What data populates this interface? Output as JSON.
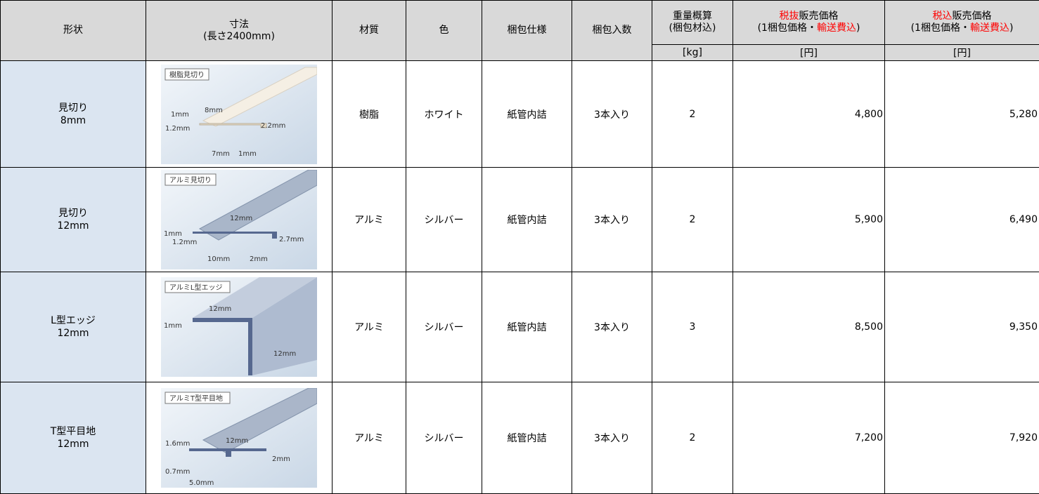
{
  "header": {
    "columns": [
      {
        "lines": [
          [
            {
              "text": "形状"
            }
          ]
        ]
      },
      {
        "lines": [
          [
            {
              "text": "寸法"
            }
          ],
          [
            {
              "text": "(長さ2400mm)"
            }
          ]
        ]
      },
      {
        "lines": [
          [
            {
              "text": "材質"
            }
          ]
        ]
      },
      {
        "lines": [
          [
            {
              "text": "色"
            }
          ]
        ]
      },
      {
        "lines": [
          [
            {
              "text": "梱包仕様"
            }
          ]
        ]
      },
      {
        "lines": [
          [
            {
              "text": "梱包入数"
            }
          ]
        ]
      },
      {
        "lines": [
          [
            {
              "text": "重量概算"
            }
          ],
          [
            {
              "text": "(梱包材込)"
            }
          ]
        ]
      },
      {
        "lines": [
          [
            {
              "text": "税抜",
              "highlight": true
            },
            {
              "text": "販売価格"
            }
          ],
          [
            {
              "text": "(1梱包価格・"
            },
            {
              "text": "輸送費込",
              "highlight": true
            },
            {
              "text": ")"
            }
          ]
        ]
      },
      {
        "lines": [
          [
            {
              "text": "税込",
              "highlight": true
            },
            {
              "text": "販売価格"
            }
          ],
          [
            {
              "text": "(1梱包価格・"
            },
            {
              "text": "輸送費込",
              "highlight": true
            },
            {
              "text": ")"
            }
          ]
        ]
      }
    ],
    "units": [
      "[kg]",
      "[円]",
      "[円]"
    ],
    "highlight_color": "#ff0000"
  },
  "table": {
    "rows": [
      {
        "shape": [
          "見切り",
          "8mm"
        ],
        "diagram": {
          "title": "樹脂見切り",
          "labels": [
            "1mm",
            "8mm",
            "1.2mm",
            "2.2mm",
            "7mm",
            "1mm"
          ]
        },
        "material": "樹脂",
        "color": "ホワイト",
        "packing": "紙管内詰",
        "quantity": "3本入り",
        "weight": "2",
        "price_ex": "4,800",
        "price_in": "5,280"
      },
      {
        "shape": [
          "見切り",
          "12mm"
        ],
        "diagram": {
          "title": "アルミ見切り",
          "labels": [
            "12mm",
            "1mm",
            "1.2mm",
            "2.7mm",
            "10mm",
            "2mm"
          ]
        },
        "material": "アルミ",
        "color": "シルバー",
        "packing": "紙管内詰",
        "quantity": "3本入り",
        "weight": "2",
        "price_ex": "5,900",
        "price_in": "6,490"
      },
      {
        "shape": [
          "L型エッジ",
          "12mm"
        ],
        "diagram": {
          "title": "アルミL型エッジ",
          "labels": [
            "12mm",
            "1mm",
            "12mm"
          ]
        },
        "material": "アルミ",
        "color": "シルバー",
        "packing": "紙管内詰",
        "quantity": "3本入り",
        "weight": "3",
        "price_ex": "8,500",
        "price_in": "9,350"
      },
      {
        "shape": [
          "T型平目地",
          "12mm"
        ],
        "diagram": {
          "title": "アルミT型平目地",
          "labels": [
            "12mm",
            "1.6mm",
            "2mm",
            "0.7mm",
            "5.0mm"
          ]
        },
        "material": "アルミ",
        "color": "シルバー",
        "packing": "紙管内詰",
        "quantity": "3本入り",
        "weight": "2",
        "price_ex": "7,200",
        "price_in": "7,920"
      }
    ]
  }
}
